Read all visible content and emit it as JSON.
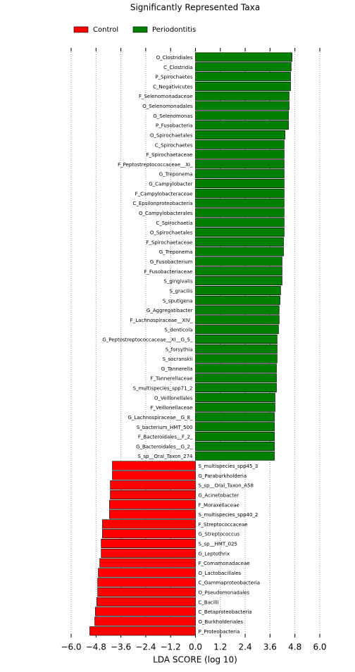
{
  "chart_data": {
    "type": "barh",
    "title": "Significantly Represented Taxa",
    "xlabel": "LDA SCORE (log 10)",
    "categories": [
      "O_Clostridiales",
      "C_Clostridia",
      "P_Spirochaetes",
      "C_Negativicutes",
      "F_Selenomonadaceae",
      "O_Selenomonadales",
      "G_Selenomonas",
      "P_Fusobacteria",
      "O_Spirochaetales",
      "C_Spirochaetes",
      "F_Spirochaetaceae",
      "F_Peptostreptococcaceae__XI_",
      "G_Treponema",
      "G_Campylobacter",
      "F_Campylobacteraceae",
      "C_Epsilonproteobacteria",
      "O_Campylobacterales",
      "C_Spirochaetia",
      "O_Spirochaetales",
      "F_Spirochaetaceae",
      "G_Treponema",
      "G_Fusobacterium",
      "F_Fusobacteriaceae",
      "S_gingivalis",
      "S_gracilis",
      "S_sputigena",
      "G_Aggregatibacter",
      "F_Lachnospiraceae__XIV_",
      "S_denticola",
      "G_Peptostreptococcaceae__XI__G_5_",
      "S_forsythia",
      "S_socranskii",
      "G_Tannerella",
      "F_Tannerellaceae",
      "S_multispecies_spp71_2",
      "O_Veillonellales",
      "F_Veillonellaceae",
      "G_Lachnospiraceae__G_8_",
      "S_bacterium_HMT_500",
      "F_Bacteroidales__F_2_",
      "G_Bacteroidales__G_2_",
      "S_sp__Oral_Taxon_274",
      "S_multispecies_spp45_3",
      "G_Paraburkholderia",
      "S_sp__Oral_Taxon_A58",
      "G_Acinetobacter",
      "F_Moraxellaceae",
      "S_multispecies_spp40_2",
      "F_Streptococcaceae",
      "G_Streptococcus",
      "S_sp__HMT_025",
      "G_Leptothrix",
      "F_Comamonadaceae",
      "O_Lactobacillales",
      "C_Gammaproteobacteria",
      "O_Pseudomonadales",
      "C_Bacilli",
      "C_Betaproteobacteria",
      "O_Burkholderiales",
      "P_Proteobacteria"
    ],
    "series": [
      {
        "name": "Control",
        "color": "#ff0000",
        "values": [
          null,
          null,
          null,
          null,
          null,
          null,
          null,
          null,
          null,
          null,
          null,
          null,
          null,
          null,
          null,
          null,
          null,
          null,
          null,
          null,
          null,
          null,
          null,
          null,
          null,
          null,
          null,
          null,
          null,
          null,
          null,
          null,
          null,
          null,
          null,
          null,
          null,
          null,
          null,
          null,
          null,
          null,
          -4.01,
          -4.01,
          -4.11,
          -4.11,
          -4.15,
          -4.15,
          -4.49,
          -4.49,
          -4.55,
          -4.55,
          -4.62,
          -4.69,
          -4.72,
          -4.72,
          -4.76,
          -4.83,
          -4.86,
          -5.1
        ]
      },
      {
        "name": "Periodontitis",
        "color": "#007f00",
        "values": [
          4.66,
          4.62,
          4.59,
          4.59,
          4.52,
          4.52,
          4.49,
          4.49,
          4.32,
          4.28,
          4.28,
          4.28,
          4.28,
          4.28,
          4.28,
          4.28,
          4.28,
          4.28,
          4.28,
          4.25,
          4.25,
          4.18,
          4.18,
          4.18,
          4.11,
          4.08,
          4.04,
          4.04,
          4.01,
          3.94,
          3.94,
          3.94,
          3.91,
          3.91,
          3.91,
          3.84,
          3.84,
          3.81,
          3.81,
          3.81,
          3.81,
          3.81,
          null,
          null,
          null,
          null,
          null,
          null,
          null,
          null,
          null,
          null,
          null,
          null,
          null,
          null,
          null,
          null,
          null,
          null
        ]
      }
    ],
    "xlim": [
      -6,
      6
    ],
    "xticks": [
      {
        "value": -6,
        "label": "−6.0"
      },
      {
        "value": -4.8,
        "label": "−4.8"
      },
      {
        "value": -3.6,
        "label": "−3.6"
      },
      {
        "value": -2.4,
        "label": "−2.4"
      },
      {
        "value": -1.2,
        "label": "−1.2"
      },
      {
        "value": 0,
        "label": "0.0"
      },
      1.2,
      2.4,
      3.6,
      4.8,
      {
        "value": 6,
        "label": "6.0"
      }
    ],
    "grid": true
  }
}
